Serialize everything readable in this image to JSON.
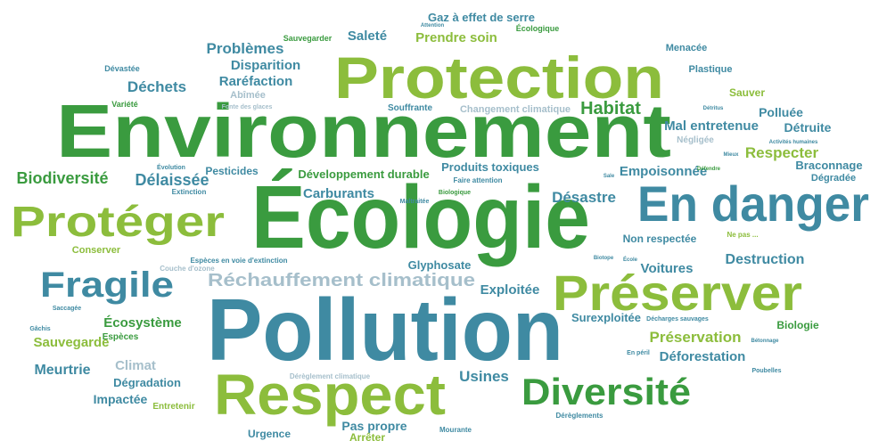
{
  "words": [
    "Environnement",
    "Écologie",
    "Pollution",
    "Protection",
    "En danger",
    "Préserver",
    "Respect",
    "Protéger",
    "Diversité",
    "Fragile",
    "Réchauffement climatique",
    "Problèmes",
    "Disparition",
    "Raréfaction",
    "Abîmée",
    "Déchets",
    "Saleté",
    "Gaz à effet de serre",
    "Prendre soin",
    "Habitat",
    "Mal entretenue",
    "Polluée",
    "Détruite",
    "Négligée",
    "Respecter",
    "Braconnage",
    "Dégradée",
    "Empoisonnée",
    "Biodiversité",
    "Délaissée",
    "Pesticides",
    "Développement durable",
    "Produits toxiques",
    "Carburants",
    "Désastre",
    "Non respectée",
    "Destruction",
    "Voitures",
    "Exploitée",
    "Glyphosate",
    "Écosystème",
    "Sauvegarde",
    "Meurtrie",
    "Climat",
    "Dégradation",
    "Impactée",
    "Surexploitée",
    "Préservation",
    "Déforestation",
    "Biologie",
    "Usines",
    "Pas propre",
    "Urgence",
    "Arrêter",
    "Conserver",
    "Espèces",
    "Sauver",
    "Plastique",
    "Menacée",
    "Entretenir",
    "Changement climatique",
    "Souffrante",
    "Variété",
    "Dévastée",
    "Sauvegarder",
    "Écologique",
    "Espèces en voie d'extinction",
    "Couche d'ozone",
    "Fonte des glaces",
    "Extinction",
    "Évolution",
    "Gâchis",
    "Saccagée",
    "Faire attention",
    "Biologique",
    "Maltraitée",
    "Ne pas ...",
    "Décharges sauvages",
    "En péril",
    "Poubelles",
    "Dérèglement climatique",
    "Dérèglements",
    "Mourante",
    "Attention",
    "Détritus",
    "Mieux",
    "Activités humaines",
    "Sale",
    "Défendre",
    "Bétonnage",
    "Biotope",
    "École"
  ]
}
